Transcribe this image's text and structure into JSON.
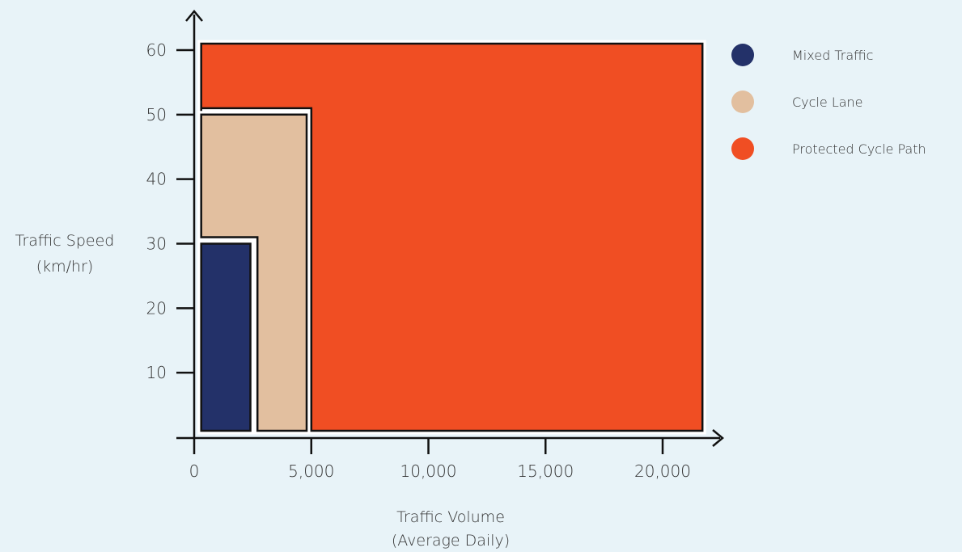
{
  "chart_data": {
    "type": "area",
    "xlabel": "Traffic Volume",
    "xlabel_sub": "(Average Daily)",
    "ylabel": "Traffic Speed",
    "ylabel_sub": "(km/hr)",
    "xlim": [
      0,
      22000
    ],
    "ylim": [
      0,
      65
    ],
    "x_ticks": [
      0,
      5000,
      10000,
      15000,
      20000
    ],
    "x_tick_labels": [
      "0",
      "5,000",
      "10,000",
      "15,000",
      "20,000"
    ],
    "y_ticks": [
      10,
      20,
      30,
      40,
      50,
      60
    ],
    "y_tick_labels": [
      "10",
      "20",
      "30",
      "40",
      "50",
      "60"
    ],
    "grid": false,
    "legend_position": "right",
    "series": [
      {
        "name": "Protected Cycle Path",
        "color": "#f04e23",
        "polygon": [
          [
            300,
            1
          ],
          [
            300,
            61
          ],
          [
            21700,
            61
          ],
          [
            21700,
            1
          ],
          [
            5000,
            1
          ],
          [
            5000,
            51
          ],
          [
            300,
            51
          ]
        ]
      },
      {
        "name": "Cycle Lane",
        "color": "#e2bf9f",
        "polygon": [
          [
            300,
            31
          ],
          [
            300,
            50
          ],
          [
            4800,
            50
          ],
          [
            4800,
            1
          ],
          [
            2700,
            1
          ],
          [
            2700,
            31
          ]
        ]
      },
      {
        "name": "Mixed Traffic",
        "color": "#233169",
        "polygon": [
          [
            300,
            1
          ],
          [
            300,
            30
          ],
          [
            2400,
            30
          ],
          [
            2400,
            1
          ]
        ]
      }
    ],
    "legend": [
      {
        "name": "Mixed Traffic",
        "color": "#233169"
      },
      {
        "name": "Cycle Lane",
        "color": "#e2bf9f"
      },
      {
        "name": "Protected Cycle Path",
        "color": "#f04e23"
      }
    ]
  }
}
